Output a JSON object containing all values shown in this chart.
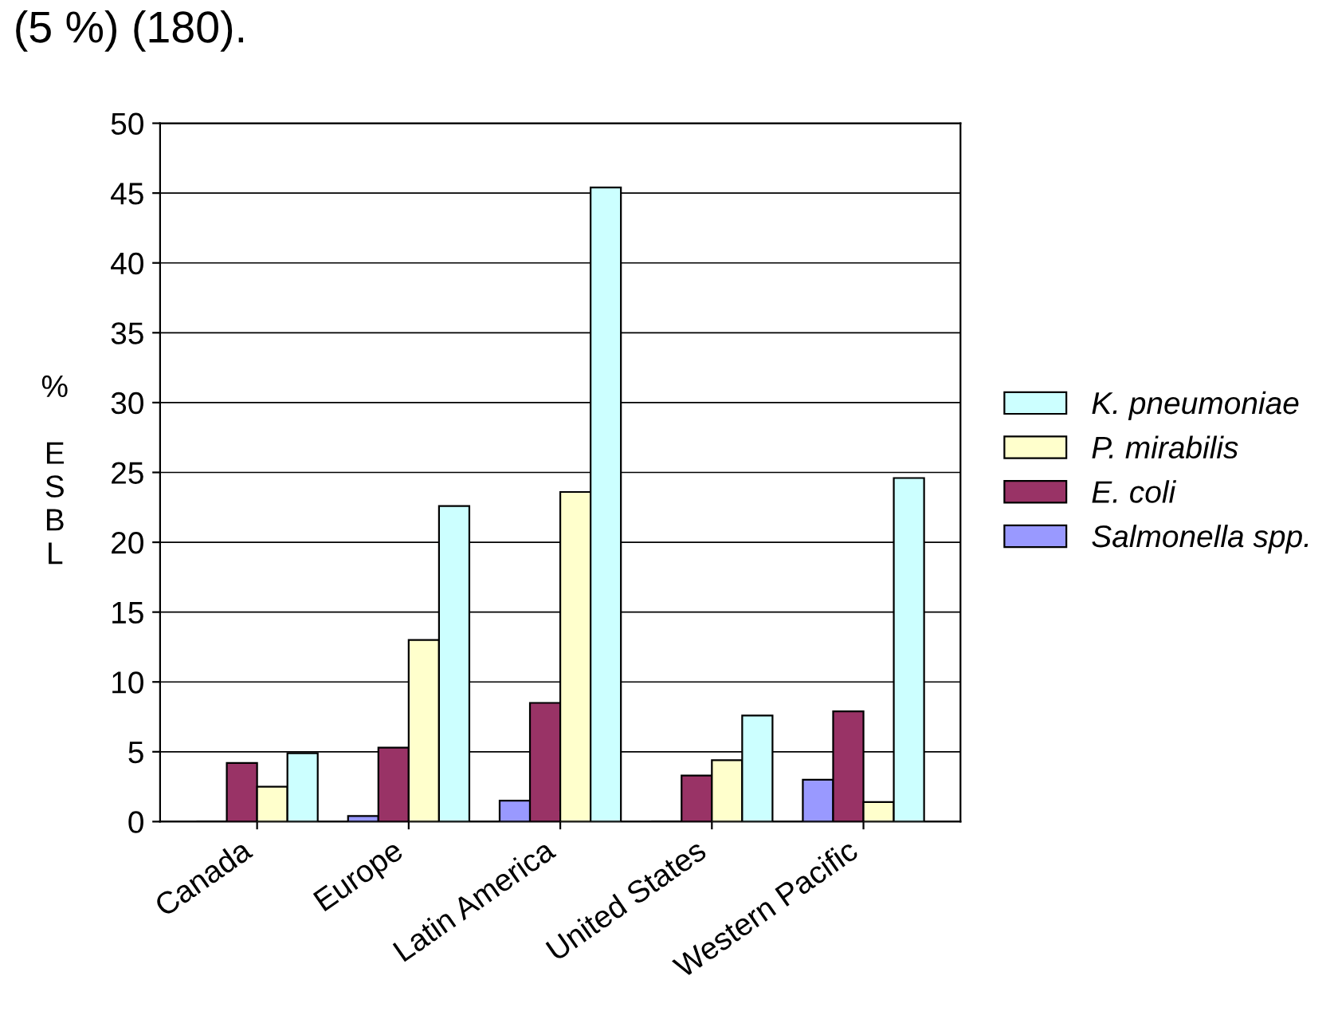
{
  "chart_data": {
    "type": "bar",
    "ylabel": "% ESBL",
    "categories": [
      "Canada",
      "Europe",
      "Latin America",
      "United States",
      "Western Pacific"
    ],
    "series": [
      {
        "name": "Salmonella spp.",
        "color": "#9999ff",
        "values": [
          0,
          0.4,
          1.5,
          0,
          3
        ]
      },
      {
        "name": "E. coli",
        "color": "#993366",
        "values": [
          4.2,
          5.3,
          8.5,
          3.3,
          7.9
        ]
      },
      {
        "name": "P. mirabilis",
        "color": "#ffffcc",
        "values": [
          2.5,
          13,
          23.6,
          4.4,
          1.4
        ]
      },
      {
        "name": "K. pneumoniae",
        "color": "#ccffff",
        "values": [
          4.9,
          22.6,
          45.4,
          7.6,
          24.6
        ]
      }
    ],
    "ylim": [
      0,
      50
    ],
    "yticks": [
      0,
      5,
      10,
      15,
      20,
      25,
      30,
      35,
      40,
      45,
      50
    ],
    "grid": "y",
    "legend": "right",
    "annotations": [
      "(5 %) (180)."
    ]
  }
}
